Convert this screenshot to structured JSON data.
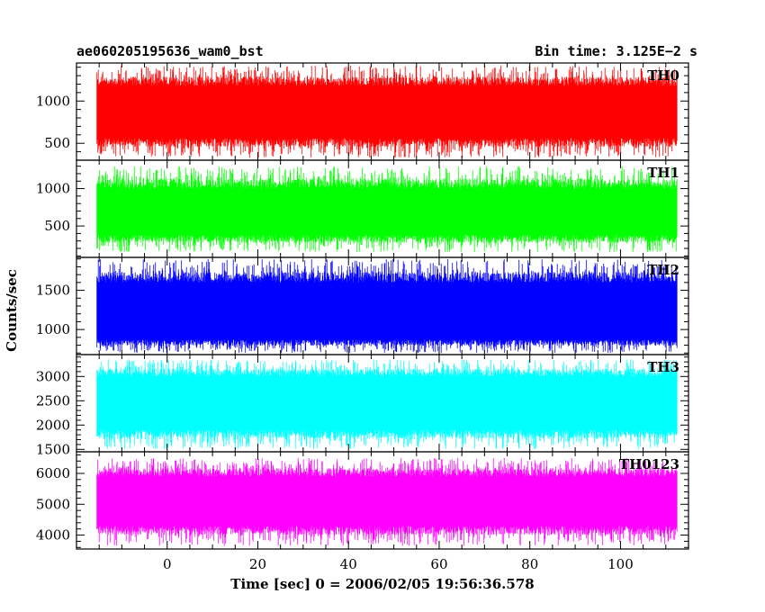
{
  "header": {
    "left": "ae060205195636_wam0_bst",
    "right": "Bin time: 3.125E−2 s"
  },
  "chart_data": {
    "type": "line",
    "xlabel": "Time [sec] 0 = 2006/02/05 19:56:36.578",
    "ylabel": "Counts/sec",
    "xlim": [
      -20,
      115
    ],
    "x_range": [
      -15.5,
      112.5
    ],
    "xticks": [
      0,
      20,
      40,
      60,
      80,
      100
    ],
    "grid": false,
    "panels": [
      {
        "name": "TH0",
        "color": "#ff0000",
        "ylim": [
          300,
          1450
        ],
        "yticks": [
          500,
          1000
        ],
        "ytick_labels": [
          "500",
          "1000"
        ],
        "band": [
          560,
          1180
        ],
        "extremes": [
          330,
          1420
        ]
      },
      {
        "name": "TH1",
        "color": "#00ff00",
        "ylim": [
          80,
          1380
        ],
        "yticks": [
          500,
          1000
        ],
        "ytick_labels": [
          "500",
          "1000"
        ],
        "band": [
          380,
          1000
        ],
        "extremes": [
          150,
          1300
        ]
      },
      {
        "name": "TH2",
        "color": "#0000ff",
        "ylim": [
          680,
          1920
        ],
        "yticks": [
          1000,
          1500
        ],
        "ytick_labels": [
          "1000",
          "1500"
        ],
        "band": [
          870,
          1600
        ],
        "extremes": [
          700,
          1900
        ]
      },
      {
        "name": "TH3",
        "color": "#00ffff",
        "ylim": [
          1450,
          3450
        ],
        "yticks": [
          1500,
          2000,
          2500,
          3000
        ],
        "ytick_labels": [
          "1500",
          "2000",
          "2500",
          "3000"
        ],
        "band": [
          1900,
          3000
        ],
        "extremes": [
          1500,
          3350
        ]
      },
      {
        "name": "TH0123",
        "color": "#ff00ff",
        "ylim": [
          3550,
          6700
        ],
        "yticks": [
          4000,
          5000,
          6000
        ],
        "ytick_labels": [
          "4000",
          "5000",
          "6000"
        ],
        "band": [
          4300,
          5900
        ],
        "extremes": [
          3650,
          6500
        ]
      }
    ]
  }
}
